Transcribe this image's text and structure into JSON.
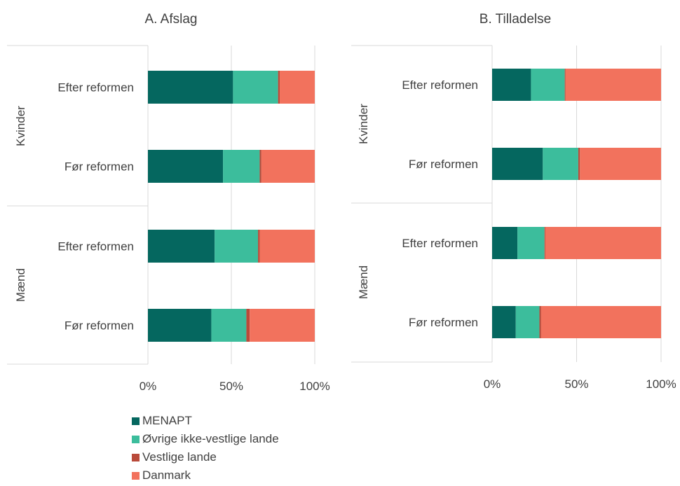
{
  "chart_data": [
    {
      "type": "bar",
      "orientation": "horizontal",
      "stacked": true,
      "percent": true,
      "title": "A. Afslag",
      "groups": [
        {
          "name": "Kvinder",
          "categories": [
            "Efter reformen",
            "Før reformen"
          ]
        },
        {
          "name": "Mænd",
          "categories": [
            "Efter reformen",
            "Før reformen"
          ]
        }
      ],
      "categories": [
        "Kvinder – Efter reformen",
        "Kvinder – Før reformen",
        "Mænd – Efter reformen",
        "Mænd – Før reformen"
      ],
      "series": [
        {
          "name": "MENAPT",
          "values": [
            51,
            45,
            40,
            38
          ]
        },
        {
          "name": "Øvrige ikke-vestlige lande",
          "values": [
            27,
            22,
            26,
            21
          ]
        },
        {
          "name": "Vestlige lande",
          "values": [
            1,
            1,
            1,
            2
          ]
        },
        {
          "name": "Danmark",
          "values": [
            21,
            32,
            33,
            39
          ]
        }
      ],
      "xlim": [
        0,
        100
      ],
      "xticks": [
        "0%",
        "50%",
        "100%"
      ],
      "grid": true
    },
    {
      "type": "bar",
      "orientation": "horizontal",
      "stacked": true,
      "percent": true,
      "title": "B. Tilladelse",
      "groups": [
        {
          "name": "Kvinder",
          "categories": [
            "Efter reformen",
            "Før reformen"
          ]
        },
        {
          "name": "Mænd",
          "categories": [
            "Efter reformen",
            "Før reformen"
          ]
        }
      ],
      "categories": [
        "Kvinder – Efter reformen",
        "Kvinder – Før reformen",
        "Mænd – Efter reformen",
        "Mænd – Før reformen"
      ],
      "series": [
        {
          "name": "MENAPT",
          "values": [
            23,
            30,
            15,
            14
          ]
        },
        {
          "name": "Øvrige ikke-vestlige lande",
          "values": [
            20,
            21,
            16,
            14
          ]
        },
        {
          "name": "Vestlige lande",
          "values": [
            0.5,
            1,
            0.5,
            1
          ]
        },
        {
          "name": "Danmark",
          "values": [
            56.5,
            48,
            68.5,
            71
          ]
        }
      ],
      "xlim": [
        0,
        100
      ],
      "xticks": [
        "0%",
        "50%",
        "100%"
      ],
      "grid": true
    }
  ],
  "colors": [
    "#05675f",
    "#3cbd9c",
    "#b94a3a",
    "#f2725d"
  ],
  "legend": {
    "placement": "bottom-left",
    "items": [
      "MENAPT",
      "Øvrige ikke-vestlige lande",
      "Vestlige lande",
      "Danmark"
    ]
  }
}
